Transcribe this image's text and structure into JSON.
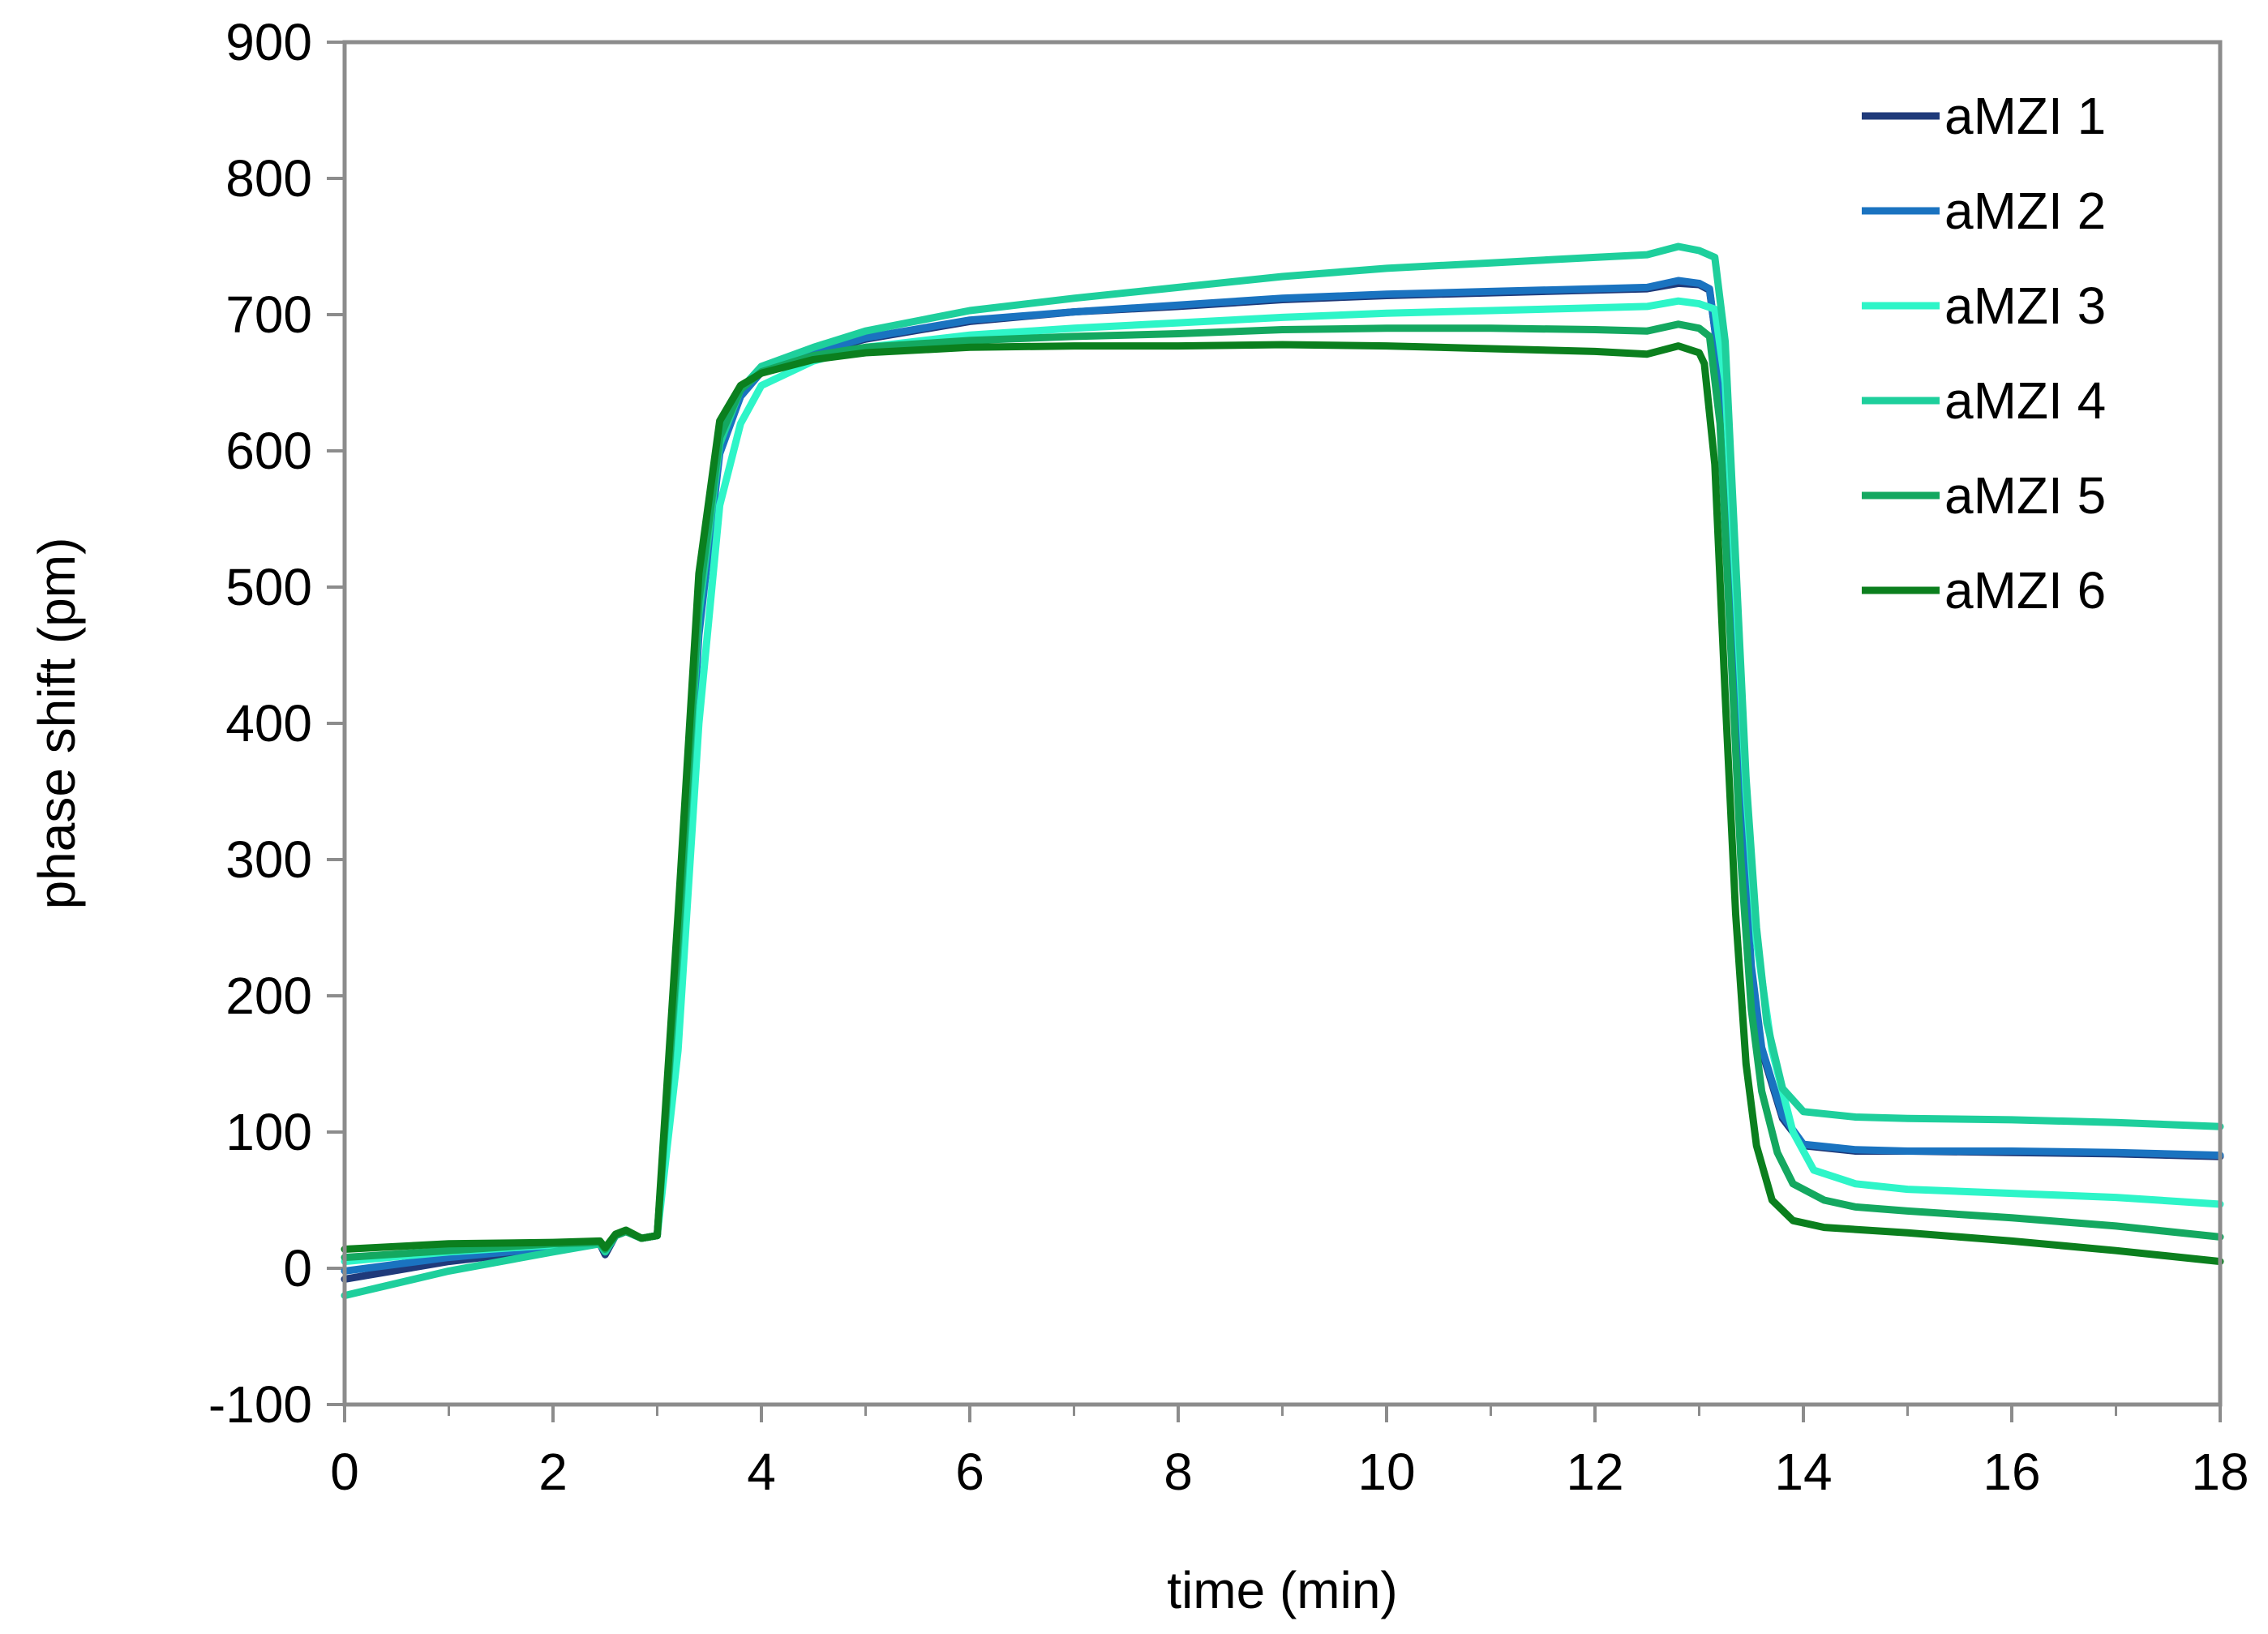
{
  "chart_data": {
    "type": "line",
    "title": "",
    "xlabel": "time (min)",
    "ylabel": "phase shift (pm)",
    "xlim": [
      0,
      18
    ],
    "ylim": [
      -100,
      900
    ],
    "x_ticks": [
      0,
      2,
      4,
      6,
      8,
      10,
      12,
      14,
      16,
      18
    ],
    "x_tick_labels": [
      "0",
      "2",
      "4",
      "6",
      "8",
      "10",
      "12",
      "14",
      "16",
      "18"
    ],
    "y_ticks": [
      -100,
      0,
      100,
      200,
      300,
      400,
      500,
      600,
      700,
      800,
      900
    ],
    "y_tick_labels": [
      "-100",
      "0",
      "100",
      "200",
      "300",
      "400",
      "500",
      "600",
      "700",
      "800",
      "900"
    ],
    "grid": false,
    "legend_position": "top-right",
    "frame_color": "#8c8c8c",
    "series": [
      {
        "name": "aMZI 1",
        "color": "#1f3a7a",
        "points": [
          [
            0,
            -8
          ],
          [
            1,
            5
          ],
          [
            2,
            14
          ],
          [
            2.45,
            18
          ],
          [
            2.5,
            10
          ],
          [
            2.6,
            24
          ],
          [
            2.7,
            27
          ],
          [
            2.85,
            22
          ],
          [
            3.0,
            24
          ],
          [
            3.2,
            220
          ],
          [
            3.4,
            470
          ],
          [
            3.6,
            600
          ],
          [
            3.8,
            640
          ],
          [
            4.0,
            658
          ],
          [
            4.5,
            672
          ],
          [
            5,
            682
          ],
          [
            6,
            695
          ],
          [
            7,
            702
          ],
          [
            8,
            706
          ],
          [
            9,
            711
          ],
          [
            10,
            714
          ],
          [
            11,
            716
          ],
          [
            12,
            718
          ],
          [
            12.5,
            719
          ],
          [
            12.8,
            723
          ],
          [
            13.0,
            722
          ],
          [
            13.1,
            718
          ],
          [
            13.2,
            660
          ],
          [
            13.3,
            500
          ],
          [
            13.4,
            330
          ],
          [
            13.5,
            220
          ],
          [
            13.6,
            160
          ],
          [
            13.8,
            110
          ],
          [
            14.0,
            90
          ],
          [
            14.5,
            86
          ],
          [
            15,
            86
          ],
          [
            16,
            85
          ],
          [
            17,
            84
          ],
          [
            18,
            82
          ]
        ]
      },
      {
        "name": "aMZI 2",
        "color": "#1a73c0",
        "points": [
          [
            0,
            -2
          ],
          [
            1,
            8
          ],
          [
            2,
            15
          ],
          [
            2.45,
            18
          ],
          [
            2.5,
            12
          ],
          [
            2.6,
            24
          ],
          [
            2.7,
            27
          ],
          [
            2.85,
            22
          ],
          [
            3.0,
            24
          ],
          [
            3.2,
            215
          ],
          [
            3.4,
            465
          ],
          [
            3.6,
            598
          ],
          [
            3.8,
            640
          ],
          [
            4.0,
            658
          ],
          [
            4.5,
            672
          ],
          [
            5,
            683
          ],
          [
            6,
            696
          ],
          [
            7,
            702
          ],
          [
            8,
            707
          ],
          [
            9,
            712
          ],
          [
            10,
            715
          ],
          [
            11,
            717
          ],
          [
            12,
            719
          ],
          [
            12.5,
            720
          ],
          [
            12.8,
            725
          ],
          [
            13.0,
            723
          ],
          [
            13.1,
            719
          ],
          [
            13.2,
            660
          ],
          [
            13.3,
            500
          ],
          [
            13.4,
            330
          ],
          [
            13.5,
            222
          ],
          [
            13.6,
            162
          ],
          [
            13.8,
            112
          ],
          [
            14.0,
            91
          ],
          [
            14.5,
            87
          ],
          [
            15,
            86
          ],
          [
            16,
            86
          ],
          [
            17,
            85
          ],
          [
            18,
            83
          ]
        ]
      },
      {
        "name": "aMZI 3",
        "color": "#2ef5c8",
        "points": [
          [
            0,
            5
          ],
          [
            1,
            12
          ],
          [
            2,
            17
          ],
          [
            2.45,
            19
          ],
          [
            2.5,
            13
          ],
          [
            2.6,
            24
          ],
          [
            2.7,
            27
          ],
          [
            2.85,
            22
          ],
          [
            3.0,
            24
          ],
          [
            3.2,
            160
          ],
          [
            3.4,
            400
          ],
          [
            3.6,
            560
          ],
          [
            3.8,
            620
          ],
          [
            4.0,
            648
          ],
          [
            4.5,
            666
          ],
          [
            5,
            676
          ],
          [
            6,
            685
          ],
          [
            7,
            690
          ],
          [
            8,
            694
          ],
          [
            9,
            698
          ],
          [
            10,
            701
          ],
          [
            11,
            703
          ],
          [
            12,
            705
          ],
          [
            12.5,
            706
          ],
          [
            12.8,
            710
          ],
          [
            13.0,
            708
          ],
          [
            13.15,
            704
          ],
          [
            13.25,
            650
          ],
          [
            13.35,
            500
          ],
          [
            13.45,
            350
          ],
          [
            13.55,
            240
          ],
          [
            13.7,
            160
          ],
          [
            13.9,
            100
          ],
          [
            14.1,
            72
          ],
          [
            14.5,
            62
          ],
          [
            15,
            58
          ],
          [
            16,
            55
          ],
          [
            17,
            52
          ],
          [
            18,
            47
          ]
        ]
      },
      {
        "name": "aMZI 4",
        "color": "#1ecf9c",
        "points": [
          [
            0,
            -20
          ],
          [
            1,
            -2
          ],
          [
            2,
            12
          ],
          [
            2.45,
            18
          ],
          [
            2.5,
            12
          ],
          [
            2.6,
            24
          ],
          [
            2.7,
            27
          ],
          [
            2.85,
            22
          ],
          [
            3.0,
            24
          ],
          [
            3.2,
            230
          ],
          [
            3.4,
            480
          ],
          [
            3.6,
            605
          ],
          [
            3.8,
            645
          ],
          [
            4.0,
            662
          ],
          [
            4.5,
            676
          ],
          [
            5,
            688
          ],
          [
            6,
            703
          ],
          [
            7,
            712
          ],
          [
            8,
            720
          ],
          [
            9,
            728
          ],
          [
            10,
            734
          ],
          [
            11,
            738
          ],
          [
            12,
            742
          ],
          [
            12.5,
            744
          ],
          [
            12.8,
            750
          ],
          [
            13.0,
            747
          ],
          [
            13.15,
            742
          ],
          [
            13.25,
            680
          ],
          [
            13.35,
            520
          ],
          [
            13.45,
            360
          ],
          [
            13.55,
            250
          ],
          [
            13.65,
            180
          ],
          [
            13.8,
            132
          ],
          [
            14.0,
            115
          ],
          [
            14.5,
            111
          ],
          [
            15,
            110
          ],
          [
            16,
            109
          ],
          [
            17,
            107
          ],
          [
            18,
            104
          ]
        ]
      },
      {
        "name": "aMZI 5",
        "color": "#14a860",
        "points": [
          [
            0,
            8
          ],
          [
            1,
            13
          ],
          [
            2,
            18
          ],
          [
            2.45,
            19
          ],
          [
            2.5,
            14
          ],
          [
            2.6,
            24
          ],
          [
            2.7,
            27
          ],
          [
            2.85,
            22
          ],
          [
            3.0,
            24
          ],
          [
            3.2,
            240
          ],
          [
            3.4,
            490
          ],
          [
            3.6,
            610
          ],
          [
            3.8,
            645
          ],
          [
            4.0,
            658
          ],
          [
            4.5,
            670
          ],
          [
            5,
            676
          ],
          [
            6,
            681
          ],
          [
            7,
            684
          ],
          [
            8,
            686
          ],
          [
            9,
            689
          ],
          [
            10,
            690
          ],
          [
            11,
            690
          ],
          [
            12,
            689
          ],
          [
            12.5,
            688
          ],
          [
            12.8,
            693
          ],
          [
            13.0,
            690
          ],
          [
            13.1,
            684
          ],
          [
            13.2,
            620
          ],
          [
            13.3,
            460
          ],
          [
            13.4,
            300
          ],
          [
            13.5,
            190
          ],
          [
            13.6,
            130
          ],
          [
            13.75,
            85
          ],
          [
            13.9,
            62
          ],
          [
            14.2,
            50
          ],
          [
            14.5,
            45
          ],
          [
            15,
            42
          ],
          [
            16,
            37
          ],
          [
            17,
            31
          ],
          [
            18,
            23
          ]
        ]
      },
      {
        "name": "aMZI 6",
        "color": "#0b7f1e",
        "points": [
          [
            0,
            14
          ],
          [
            1,
            18
          ],
          [
            2,
            19
          ],
          [
            2.45,
            20
          ],
          [
            2.5,
            15
          ],
          [
            2.6,
            25
          ],
          [
            2.7,
            28
          ],
          [
            2.85,
            22
          ],
          [
            3.0,
            24
          ],
          [
            3.2,
            260
          ],
          [
            3.4,
            510
          ],
          [
            3.6,
            622
          ],
          [
            3.8,
            648
          ],
          [
            4.0,
            657
          ],
          [
            4.5,
            667
          ],
          [
            5,
            672
          ],
          [
            6,
            676
          ],
          [
            7,
            677
          ],
          [
            8,
            677
          ],
          [
            9,
            678
          ],
          [
            10,
            677
          ],
          [
            11,
            675
          ],
          [
            12,
            673
          ],
          [
            12.5,
            671
          ],
          [
            12.8,
            677
          ],
          [
            13.0,
            672
          ],
          [
            13.05,
            664
          ],
          [
            13.15,
            590
          ],
          [
            13.25,
            420
          ],
          [
            13.35,
            260
          ],
          [
            13.45,
            150
          ],
          [
            13.55,
            90
          ],
          [
            13.7,
            50
          ],
          [
            13.9,
            35
          ],
          [
            14.2,
            30
          ],
          [
            15,
            26
          ],
          [
            16,
            20
          ],
          [
            17,
            13
          ],
          [
            18,
            5
          ]
        ]
      }
    ]
  }
}
